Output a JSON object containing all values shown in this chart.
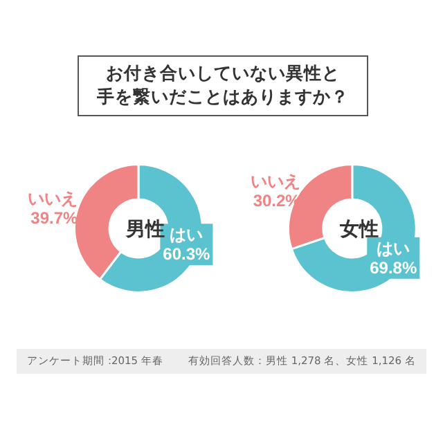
{
  "chart_data": [
    {
      "type": "donut",
      "title": "男性",
      "categories": [
        "はい",
        "いいえ"
      ],
      "values": [
        60.3,
        39.7
      ],
      "value_labels": [
        "60.3%",
        "39.7%"
      ],
      "colors": [
        "#5bc3cf",
        "#f08383"
      ],
      "legend": false,
      "annotations": [
        "お付き合いしていない異性と",
        "手を繋いだことはありますか？"
      ]
    },
    {
      "type": "donut",
      "title": "女性",
      "categories": [
        "はい",
        "いいえ"
      ],
      "values": [
        69.8,
        30.2
      ],
      "value_labels": [
        "69.8%",
        "30.2%"
      ],
      "colors": [
        "#5bc3cf",
        "#f08383"
      ],
      "legend": false,
      "annotations": [
        "アンケート期間 :2015 年春",
        "有効回答人数：男性 1,278 名、女性 1,126 名"
      ]
    }
  ]
}
